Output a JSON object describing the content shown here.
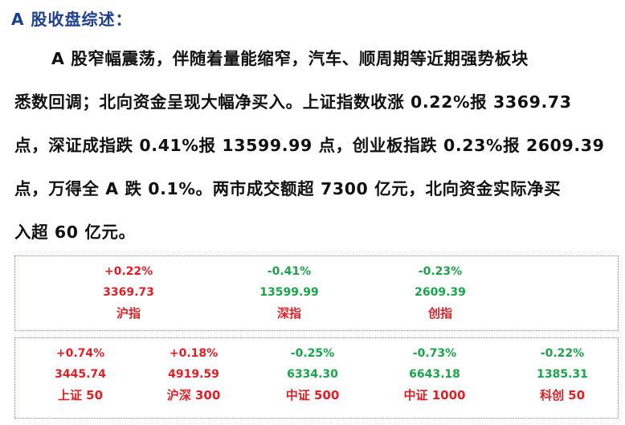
{
  "heading": "A 股收盘综述：",
  "paragraph_lines": [
    "A 股窄幅震荡，伴随着量能缩窄，汽车、顺周期等近期强势板块",
    "悉数回调；北向资金呈现大幅净买入。上证指数收涨 0.22%报 3369.73",
    "点，深证成指跌 0.41%报 13599.99 点，创业板指跌 0.23%报 2609.39",
    "点，万得全 A 跌 0.1%。两市成交额超 7300 亿元，北向资金实际净买",
    "入超 60 亿元。"
  ],
  "colors": {
    "up": "#e31e24",
    "down": "#1aa548",
    "heading": "#1f3f8f"
  },
  "indices_row1": [
    {
      "change": "+0.22%",
      "value": "3369.73",
      "name": "沪指",
      "direction": "up"
    },
    {
      "change": "-0.41%",
      "value": "13599.99",
      "name": "深指",
      "direction": "down"
    },
    {
      "change": "-0.23%",
      "value": "2609.39",
      "name": "创指",
      "direction": "down"
    }
  ],
  "indices_row2": [
    {
      "change": "+0.74%",
      "value": "3445.74",
      "name": "上证 50",
      "direction": "up"
    },
    {
      "change": "+0.18%",
      "value": "4919.59",
      "name": "沪深 300",
      "direction": "up"
    },
    {
      "change": "-0.25%",
      "value": "6334.30",
      "name": "中证 500",
      "direction": "down"
    },
    {
      "change": "-0.73%",
      "value": "6643.18",
      "name": "中证 1000",
      "direction": "down"
    },
    {
      "change": "-0.22%",
      "value": "1385.31",
      "name": "科创 50",
      "direction": "down"
    }
  ]
}
